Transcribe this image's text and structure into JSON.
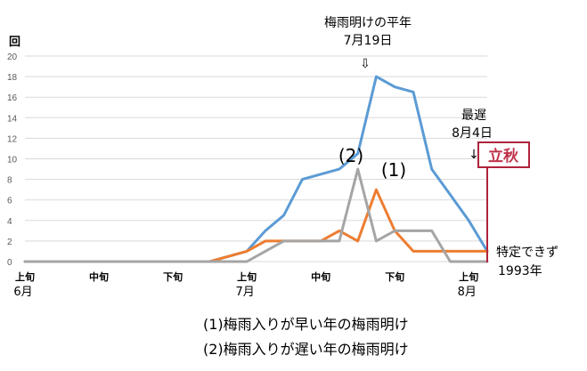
{
  "chart_data": {
    "type": "line",
    "ylabel": "回",
    "ylim": [
      0,
      20
    ],
    "yticks": [
      0,
      2,
      4,
      6,
      8,
      10,
      12,
      14,
      16,
      18,
      20
    ],
    "x_ticks": [
      "上旬",
      "中旬",
      "下旬",
      "上旬",
      "中旬",
      "下旬",
      "上旬"
    ],
    "months": [
      "6月",
      "7月",
      "8月"
    ],
    "x": [
      1,
      1.5,
      2,
      2.5,
      3,
      3.5,
      4,
      4.5,
      5,
      5.5,
      6,
      6.5,
      7,
      7.5,
      8,
      8.5,
      9,
      9.5,
      10,
      10.5,
      11,
      11.5,
      12,
      12.5,
      13,
      13.5
    ],
    "series": [
      {
        "key": "normal",
        "color": "#5b9bd5",
        "values": [
          0,
          0,
          0,
          0,
          0,
          0,
          0,
          0,
          0,
          0,
          0,
          0.5,
          1,
          3,
          4.5,
          8,
          8.5,
          9,
          10.5,
          18,
          17,
          16.5,
          9,
          6.5,
          4,
          1
        ]
      },
      {
        "key": "early",
        "label": "(1)",
        "color": "#ed7d31",
        "values": [
          0,
          0,
          0,
          0,
          0,
          0,
          0,
          0,
          0,
          0,
          0,
          0.5,
          1,
          2,
          2,
          2,
          2,
          3,
          2,
          7,
          3,
          1,
          1,
          1,
          1,
          1
        ]
      },
      {
        "key": "late",
        "label": "(2)",
        "color": "#a5a5a5",
        "values": [
          0,
          0,
          0,
          0,
          0,
          0,
          0,
          0,
          0,
          0,
          0,
          0,
          0,
          1,
          2,
          2,
          2,
          2,
          9,
          2,
          3,
          3,
          3,
          0,
          0,
          0
        ]
      }
    ],
    "annotations": {
      "heinen_title": "梅雨明けの平年",
      "heinen_date": "7月19日",
      "arrow_down": "⇩",
      "latest_title": "最遅",
      "latest_date": "8月4日",
      "latest_arrow": "↓",
      "risshu": "立秋",
      "undetermined": "特定できず",
      "undetermined_year": "1993年"
    },
    "legend_lines": [
      "(1)梅雨入りが早い年の梅雨明け",
      "(2)梅雨入りが遅い年の梅雨明け"
    ],
    "grid": true
  }
}
